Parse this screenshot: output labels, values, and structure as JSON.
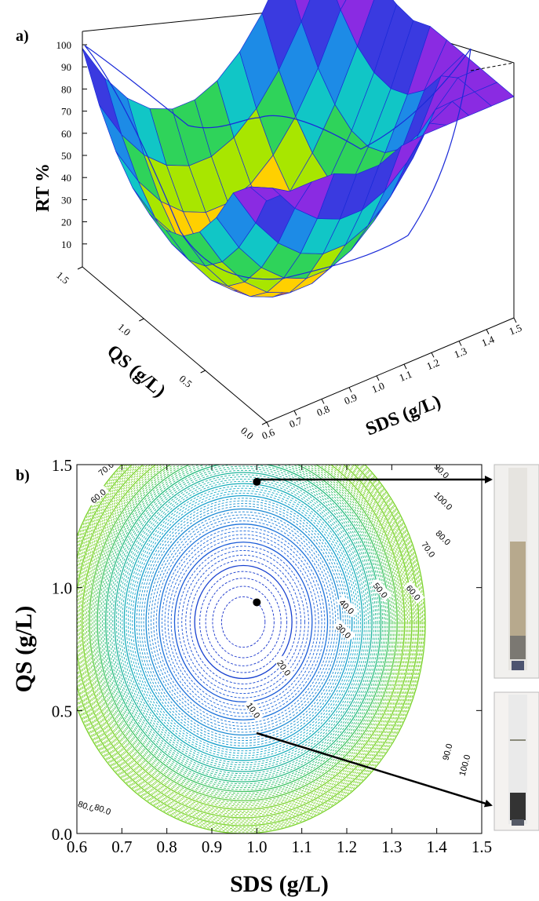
{
  "panel_a": {
    "label": "a)"
  },
  "panel_b": {
    "label": "b)"
  },
  "chart_data": [
    {
      "type": "surface",
      "panel": "a)",
      "zlabel": "RT %",
      "xlabel": "SDS (g/L)",
      "ylabel": "QS (g/L)",
      "x_ticks": [
        "0.6",
        "0.7",
        "0.8",
        "0.9",
        "1.0",
        "1.1",
        "1.2",
        "1.3",
        "1.4",
        "1.5"
      ],
      "y_ticks": [
        "0.0",
        "0.5",
        "1.0",
        "1.5"
      ],
      "z_ticks": [
        "10",
        "20",
        "30",
        "40",
        "50",
        "60",
        "70",
        "80",
        "90",
        "100"
      ],
      "xlim": [
        0.6,
        1.5
      ],
      "ylim": [
        0.0,
        1.5
      ],
      "zlim": [
        0,
        100
      ],
      "surface": {
        "minimum_at": {
          "x": 0.97,
          "y": 0.86
        },
        "minimum_rt": 3,
        "max_rt": 100
      },
      "colormap": [
        "#ff7a00",
        "#ffd000",
        "#a8e600",
        "#2fd35a",
        "#11c6c6",
        "#1d8be6",
        "#3a3ae0",
        "#8a2be2"
      ]
    },
    {
      "type": "contour",
      "panel": "b)",
      "xlabel": "SDS (g/L)",
      "ylabel": "QS (g/L)",
      "x_ticks": [
        "0.6",
        "0.7",
        "0.8",
        "0.9",
        "1.0",
        "1.1",
        "1.2",
        "1.3",
        "1.4",
        "1.5"
      ],
      "y_ticks": [
        "0.0",
        "0.5",
        "1.0",
        "1.5"
      ],
      "xlim": [
        0.6,
        1.5
      ],
      "ylim": [
        0.0,
        1.5
      ],
      "center": {
        "x": 0.97,
        "y": 0.86
      },
      "solid_levels": [
        10,
        20,
        30,
        40,
        50,
        60,
        70,
        80,
        90,
        100
      ],
      "contour_labels": [
        {
          "text": "10.0"
        },
        {
          "text": "20.0"
        },
        {
          "text": "30.0"
        },
        {
          "text": "40.0"
        },
        {
          "text": "50.0"
        },
        {
          "text": "60.0"
        },
        {
          "text": "70.0"
        },
        {
          "text": "80.0"
        },
        {
          "text": "90.0"
        },
        {
          "text": "100.0"
        },
        {
          "text": "70.0"
        },
        {
          "text": "60.0"
        },
        {
          "text": "80.0"
        },
        {
          "text": "80.0"
        },
        {
          "text": "90.0"
        },
        {
          "text": "100.0"
        }
      ],
      "points": [
        {
          "x": 1.0,
          "y": 1.43
        },
        {
          "x": 1.0,
          "y": 0.94
        }
      ]
    }
  ]
}
